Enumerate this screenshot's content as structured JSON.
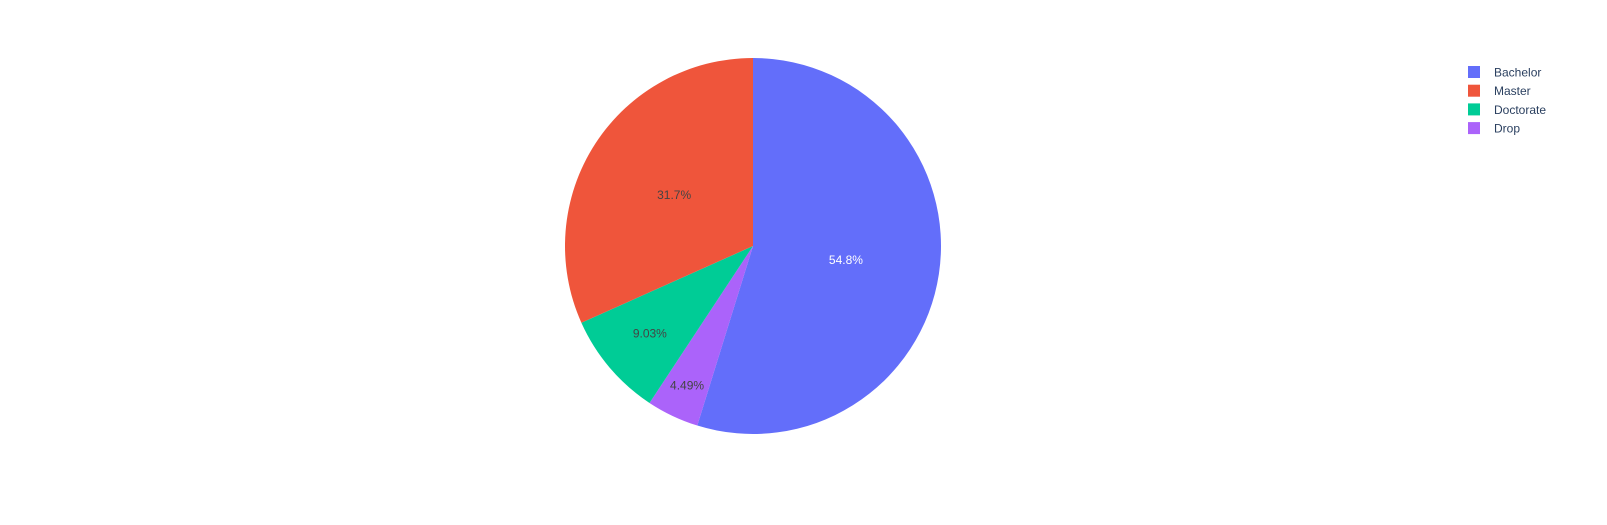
{
  "chart_data": {
    "type": "pie",
    "direction": "clockwise",
    "start_angle_deg": 0,
    "slices": [
      {
        "label": "Bachelor",
        "percent": 54.8,
        "display": "54.8%",
        "color": "#636efa",
        "text_color": "#ffffff"
      },
      {
        "label": "Drop",
        "percent": 4.49,
        "display": "4.49%",
        "color": "#ab63fa",
        "text_color": "#444444"
      },
      {
        "label": "Doctorate",
        "percent": 9.03,
        "display": "9.03%",
        "color": "#00cc96",
        "text_color": "#444444"
      },
      {
        "label": "Master",
        "percent": 31.7,
        "display": "31.7%",
        "color": "#ef553b",
        "text_color": "#444444"
      }
    ],
    "legend": {
      "placement": "top-right",
      "entries": [
        {
          "label": "Bachelor",
          "color": "#636efa"
        },
        {
          "label": "Master",
          "color": "#ef553b"
        },
        {
          "label": "Doctorate",
          "color": "#00cc96"
        },
        {
          "label": "Drop",
          "color": "#ab63fa"
        }
      ]
    }
  }
}
